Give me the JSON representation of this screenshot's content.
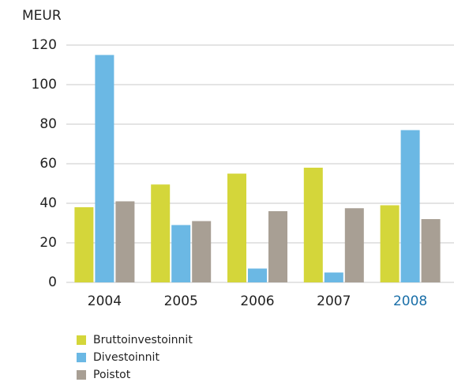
{
  "chart_data": {
    "type": "bar",
    "y_label": "MEUR",
    "categories": [
      "2004",
      "2005",
      "2006",
      "2007",
      "2008"
    ],
    "category_label_colors": [
      "#222222",
      "#222222",
      "#222222",
      "#222222",
      "#1a6fa8"
    ],
    "series": [
      {
        "name": "Bruttoinvestoinnit",
        "color": "#d4d63a",
        "values": [
          38,
          49.5,
          55,
          58,
          39
        ]
      },
      {
        "name": "Divestoinnit",
        "color": "#6bb8e4",
        "values": [
          115,
          29,
          7,
          5,
          77
        ]
      },
      {
        "name": "Poistot",
        "color": "#a89f94",
        "values": [
          41,
          31,
          36,
          37.5,
          32
        ]
      }
    ],
    "ylim": [
      0,
      120
    ],
    "yticks": [
      0,
      20,
      40,
      60,
      80,
      100,
      120
    ],
    "grid": true
  }
}
